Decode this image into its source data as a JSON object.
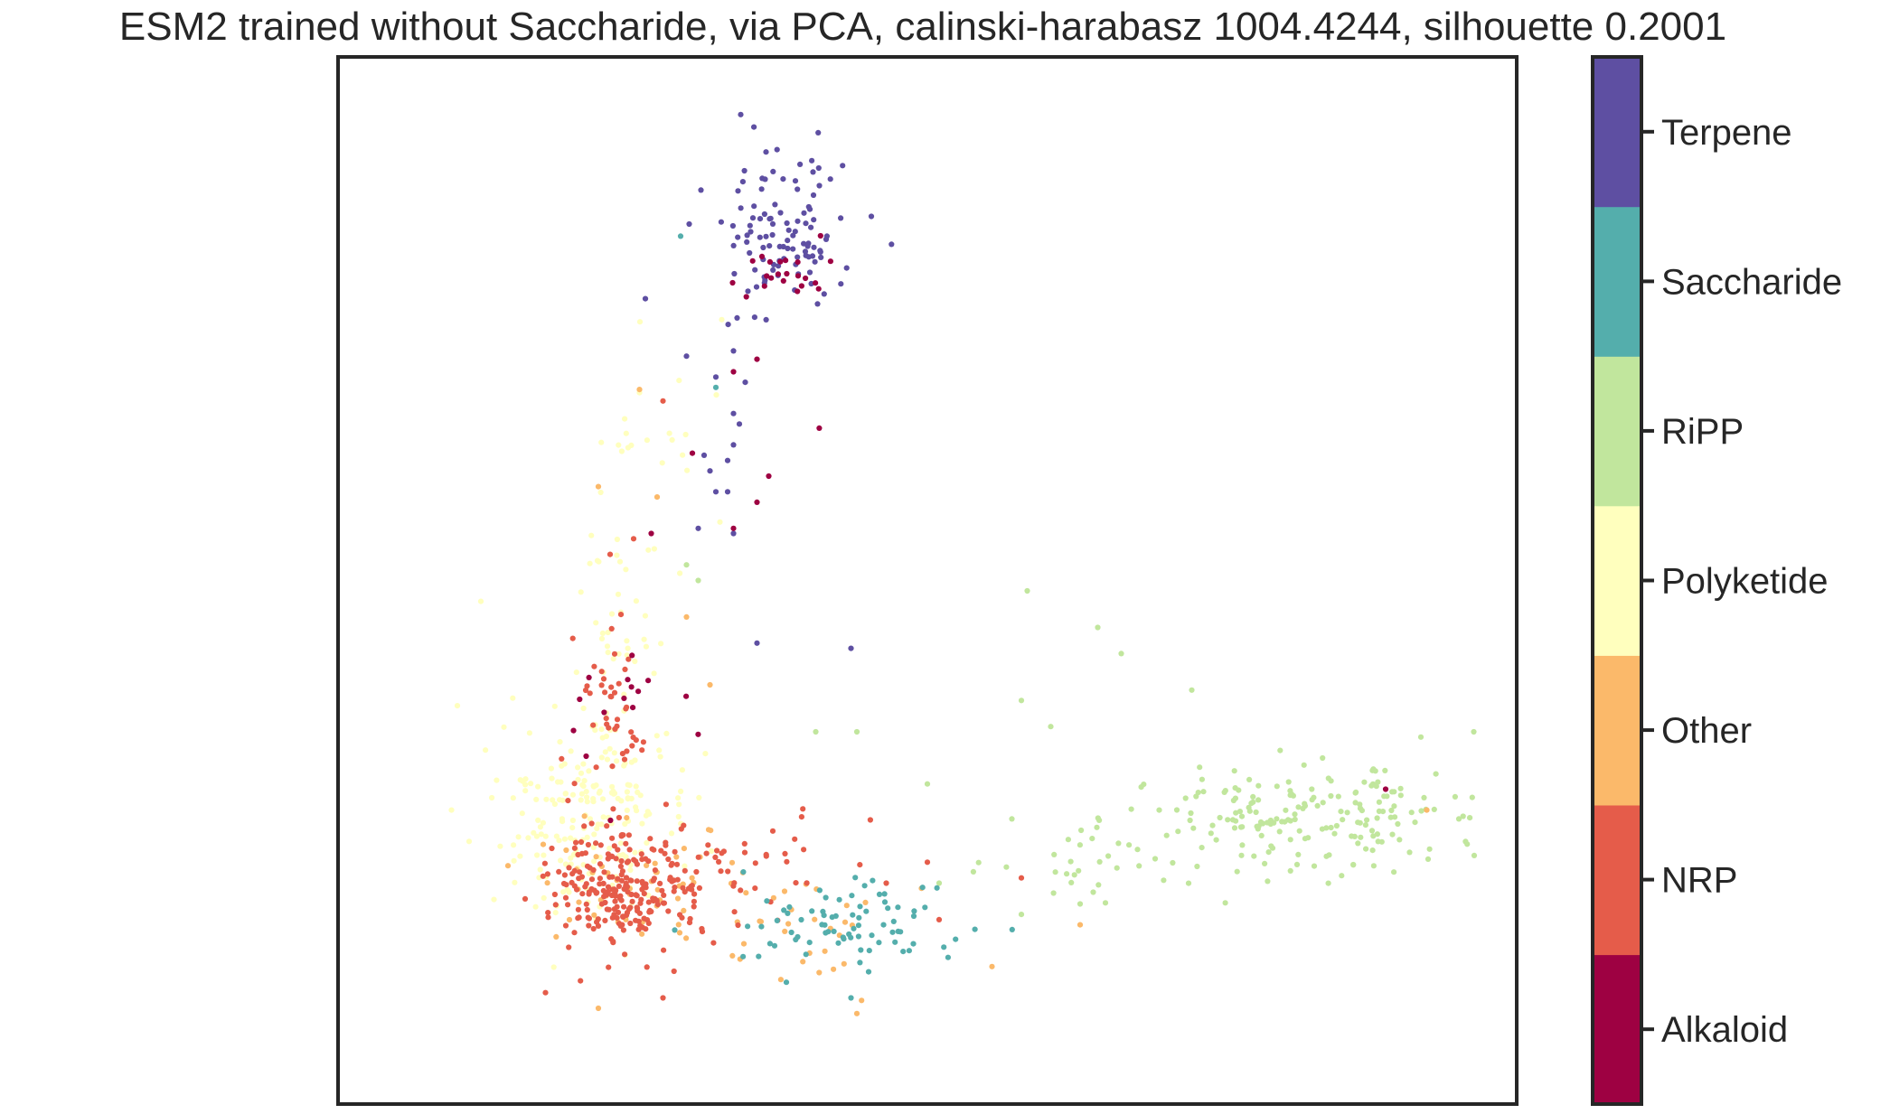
{
  "chart_data": {
    "type": "scatter",
    "title": "ESM2 trained without Saccharide, via PCA, calinski-harabasz 1004.4244, silhouette 0.2001",
    "xlabel": "",
    "ylabel": "",
    "axis_ticks": "none",
    "xlim": [
      0,
      100
    ],
    "ylim": [
      0,
      100
    ],
    "grid": false,
    "legend": "colorbar-right",
    "colorbar": {
      "categories": [
        "Alkaloid",
        "NRP",
        "Other",
        "Polyketide",
        "RiPP",
        "Saccharide",
        "Terpene"
      ],
      "colors": [
        "#9e0142",
        "#e55c4a",
        "#fbb96a",
        "#ffffbe",
        "#c1e69d",
        "#54aeac",
        "#5e4fa2"
      ]
    },
    "series": [
      {
        "name": "Alkaloid",
        "clusters": [
          {
            "center": [
              37.5,
              79.5
            ],
            "spread": [
              2.2,
              1.6
            ],
            "count": 22
          },
          {
            "center": [
              24.5,
              40.5
            ],
            "spread": [
              2.5,
              4.5
            ],
            "count": 14
          }
        ],
        "points": [
          [
            40.8,
            64.6
          ],
          [
            36.5,
            60.0
          ],
          [
            35.5,
            71.2
          ],
          [
            35.5,
            57.5
          ],
          [
            26.5,
            54.5
          ],
          [
            33.5,
            55.0
          ],
          [
            89.0,
            30.0
          ],
          [
            30.0,
            62.2
          ],
          [
            24.5,
            40.5
          ],
          [
            33.5,
            70.0
          ]
        ]
      },
      {
        "name": "NRP",
        "clusters": [
          {
            "center": [
              24.5,
              20.5
            ],
            "spread": [
              3.5,
              2.8
            ],
            "count": 240
          },
          {
            "center": [
              23.0,
              36.0
            ],
            "spread": [
              1.8,
              5.0
            ],
            "count": 45
          },
          {
            "center": [
              33.5,
              23.0
            ],
            "spread": [
              4.5,
              3.0
            ],
            "count": 40
          }
        ],
        "points": [
          [
            27.5,
            67.2
          ],
          [
            25.0,
            54.0
          ],
          [
            23.0,
            52.5
          ],
          [
            17.5,
            10.5
          ],
          [
            27.5,
            10.0
          ],
          [
            46.5,
            21.0
          ],
          [
            50.0,
            23.0
          ],
          [
            58.0,
            21.5
          ],
          [
            51.0,
            17.5
          ]
        ]
      },
      {
        "name": "Other",
        "clusters": [
          {
            "center": [
              26.5,
              21.0
            ],
            "spread": [
              5.5,
              3.2
            ],
            "count": 55
          },
          {
            "center": [
              40.0,
              15.5
            ],
            "spread": [
              4.5,
              2.5
            ],
            "count": 25
          }
        ],
        "points": [
          [
            25.5,
            68.3
          ],
          [
            22.0,
            59.0
          ],
          [
            27.0,
            58.0
          ],
          [
            29.5,
            46.5
          ],
          [
            55.5,
            13.0
          ],
          [
            63.0,
            17.0
          ],
          [
            49.5,
            20.5
          ],
          [
            44.0,
            8.5
          ],
          [
            22.0,
            9.0
          ],
          [
            31.5,
            40.0
          ],
          [
            92.5,
            28.0
          ]
        ]
      },
      {
        "name": "Polyketide",
        "clusters": [
          {
            "center": [
              21.5,
              27.5
            ],
            "spread": [
              4.0,
              4.5
            ],
            "count": 200
          },
          {
            "center": [
              23.5,
              45.0
            ],
            "spread": [
              2.0,
              5.0
            ],
            "count": 40
          },
          {
            "center": [
              27.0,
              60.0
            ],
            "spread": [
              2.5,
              6.0
            ],
            "count": 20
          }
        ],
        "points": [
          [
            12.0,
            48.0
          ],
          [
            10.0,
            38.0
          ],
          [
            9.5,
            28.0
          ],
          [
            11.0,
            25.0
          ],
          [
            25.5,
            68.0
          ],
          [
            32.5,
            75.0
          ]
        ]
      },
      {
        "name": "RiPP",
        "clusters": [
          {
            "center": [
              83.0,
              27.5
            ],
            "spread": [
              6.5,
              2.5
            ],
            "count": 180
          },
          {
            "center": [
              66.0,
              23.5
            ],
            "spread": [
              5.5,
              3.0
            ],
            "count": 40
          }
        ],
        "points": [
          [
            58.5,
            49.0
          ],
          [
            64.5,
            45.5
          ],
          [
            66.5,
            43.0
          ],
          [
            72.5,
            39.5
          ],
          [
            58.0,
            38.5
          ],
          [
            60.5,
            36.0
          ],
          [
            40.5,
            35.5
          ],
          [
            44.0,
            35.5
          ],
          [
            50.0,
            30.5
          ],
          [
            51.0,
            21.0
          ],
          [
            58.0,
            18.0
          ],
          [
            63.0,
            19.0
          ],
          [
            92.0,
            35.0
          ],
          [
            96.5,
            35.5
          ],
          [
            30.5,
            50.0
          ],
          [
            29.5,
            51.5
          ]
        ]
      },
      {
        "name": "Saccharide",
        "clusters": [
          {
            "center": [
              43.5,
              17.0
            ],
            "spread": [
              4.5,
              2.0
            ],
            "count": 75
          }
        ],
        "points": [
          [
            32.0,
            68.5
          ],
          [
            29.0,
            83.0
          ],
          [
            37.0,
            15.0
          ],
          [
            43.5,
            10.0
          ],
          [
            45.0,
            12.5
          ],
          [
            38.0,
            11.5
          ],
          [
            28.5,
            16.5
          ]
        ]
      },
      {
        "name": "Terpene",
        "clusters": [
          {
            "center": [
              37.5,
              83.5
            ],
            "spread": [
              3.0,
              4.0
            ],
            "count": 110
          }
        ],
        "points": [
          [
            26.0,
            77.0
          ],
          [
            29.5,
            71.5
          ],
          [
            32.0,
            69.5
          ],
          [
            33.5,
            72.0
          ],
          [
            34.0,
            65.0
          ],
          [
            33.5,
            63.0
          ],
          [
            33.0,
            61.5
          ],
          [
            31.0,
            62.0
          ],
          [
            30.5,
            55.0
          ],
          [
            32.0,
            58.5
          ],
          [
            33.0,
            58.5
          ],
          [
            31.5,
            60.5
          ],
          [
            33.5,
            54.5
          ],
          [
            43.5,
            43.5
          ],
          [
            35.5,
            44.0
          ],
          [
            33.5,
            66.0
          ],
          [
            34.5,
            69.0
          ]
        ]
      }
    ]
  }
}
